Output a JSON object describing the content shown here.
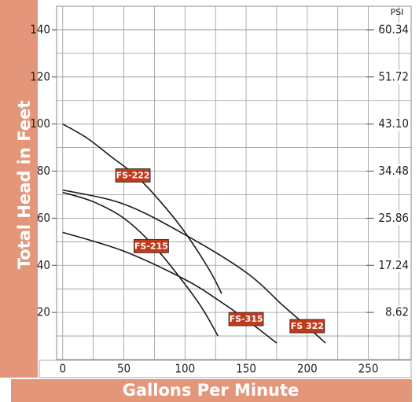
{
  "chart_data": {
    "type": "line",
    "y_label": "Total Head in Feet",
    "x_label": "Gallons Per Minute",
    "y2_label": "PSI",
    "xlim": [
      -5,
      285
    ],
    "xticks": [
      0,
      50,
      100,
      150,
      200,
      250
    ],
    "xgrid": [
      0,
      25,
      50,
      75,
      100,
      125,
      150,
      175,
      200,
      225,
      250,
      275
    ],
    "ylim": [
      0,
      150
    ],
    "yticks": [
      20,
      40,
      60,
      80,
      100,
      120,
      140
    ],
    "ygrid": [
      10,
      20,
      30,
      40,
      50,
      60,
      70,
      80,
      90,
      100,
      110,
      120,
      130,
      140
    ],
    "y2lim": [
      0,
      64.65
    ],
    "y2ticks": [
      8.62,
      17.24,
      25.86,
      34.48,
      {
        "value": 43.1,
        "label": "43.10"
      },
      51.72,
      60.34
    ],
    "grid": true,
    "series": [
      {
        "name": "FS-222",
        "color": "#1a1a1a",
        "x": [
          0,
          20,
          40,
          60,
          80,
          100,
          120,
          130
        ],
        "values": [
          100,
          94,
          86,
          78,
          67,
          54,
          38,
          28
        ]
      },
      {
        "name": "FS 322",
        "color": "#1a1a1a",
        "x": [
          0,
          50,
          100,
          150,
          180,
          200,
          215
        ],
        "values": [
          72,
          66,
          53,
          37,
          23,
          14,
          7
        ]
      },
      {
        "name": "FS-215",
        "color": "#1a1a1a",
        "x": [
          0,
          25,
          50,
          75,
          100,
          115,
          127
        ],
        "values": [
          71,
          67,
          60,
          48,
          32,
          21,
          10
        ]
      },
      {
        "name": "FS-315",
        "color": "#1a1a1a",
        "x": [
          0,
          50,
          100,
          125,
          150,
          175
        ],
        "values": [
          54,
          46,
          34,
          26,
          17,
          7
        ]
      }
    ]
  }
}
